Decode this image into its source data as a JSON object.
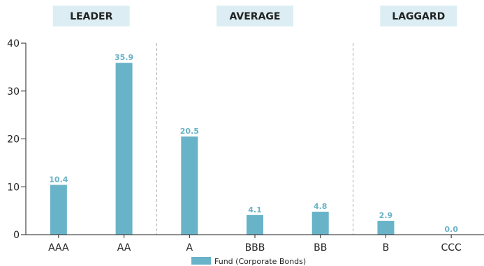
{
  "chart_data": {
    "type": "bar",
    "categories": [
      "AAA",
      "AA",
      "A",
      "BBB",
      "BB",
      "B",
      "CCC"
    ],
    "series": [
      {
        "name": "Fund (Corporate Bonds)",
        "values": [
          10.4,
          35.9,
          20.5,
          4.1,
          4.8,
          2.9,
          0.0
        ]
      }
    ],
    "value_labels": [
      "10.4",
      "35.9",
      "20.5",
      "4.1",
      "4.8",
      "2.9",
      "0.0"
    ],
    "y_ticks": [
      0,
      10,
      20,
      30,
      40
    ],
    "ylim": [
      0,
      40
    ],
    "groups": [
      {
        "label": "LEADER",
        "categories": [
          "AAA",
          "AA"
        ]
      },
      {
        "label": "AVERAGE",
        "categories": [
          "A",
          "BBB",
          "BB"
        ]
      },
      {
        "label": "LAGGARD",
        "categories": [
          "B",
          "CCC"
        ]
      }
    ],
    "grid": false,
    "legend_position": "bottom-center",
    "colors": {
      "bar": "#69b3c8",
      "data_label": "#6ab3c7",
      "group_label_background": "#dceef3",
      "separator": "#aaaaaa",
      "axis": "#222222"
    }
  }
}
